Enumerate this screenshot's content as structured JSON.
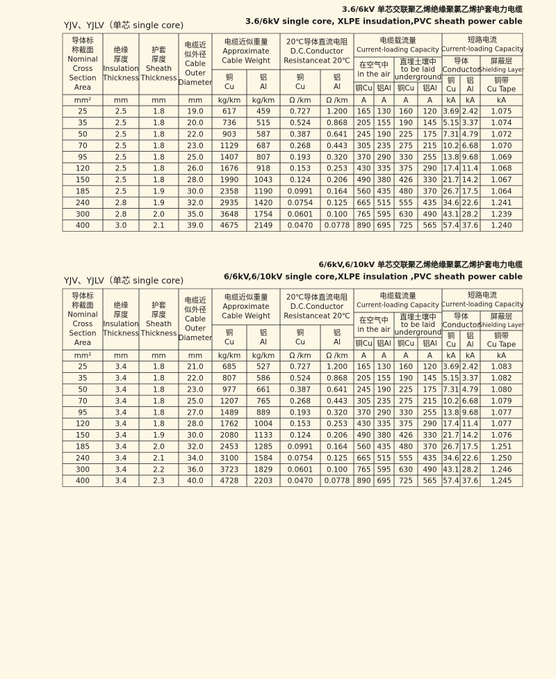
{
  "sections": [
    {
      "title_cn": "3.6/6kV 单芯交联聚乙烯绝缘聚氯乙烯护套电力电缆",
      "title_en": "3.6/6kV single core, XLPE insudation,PVC sheath power cable",
      "label": "YJV、YJLV（单芯  single core)",
      "header": {
        "nominal_area": [
          "导体标",
          "称截面",
          "Nominal",
          "Cross",
          "Section",
          "Area"
        ],
        "insulation": [
          "绝缘",
          "厚度",
          "Insulation",
          "Thickness"
        ],
        "sheath": [
          "护套",
          "厚度",
          "Sheath",
          "Thickness"
        ],
        "diameter": [
          "电缆近",
          "似外径",
          "Cable",
          "Outer",
          "Diameter"
        ],
        "weight": [
          "电缆近似重量",
          "Approximate",
          "Cable Weight"
        ],
        "weight_cu": [
          "铜",
          "Cu"
        ],
        "weight_al": [
          "铝",
          "Al"
        ],
        "resistance": [
          "20℃导体直流电阻",
          "D.C.Conductor",
          "Resistanceat 20℃"
        ],
        "res_cu": [
          "铜",
          "Cu"
        ],
        "res_al": [
          "铝",
          "Al"
        ],
        "current": [
          "电缆载流量",
          "Current-loading Capacity"
        ],
        "air": [
          "在空气中",
          "in the air"
        ],
        "ground": [
          "直埋土壤中",
          "to be laid",
          "underground"
        ],
        "air_cu": [
          "铜Cu"
        ],
        "air_al": [
          "铝Al"
        ],
        "ground_cu": [
          "铜Cu"
        ],
        "ground_al": [
          "铝Al"
        ],
        "short": [
          "短路电流",
          "Current-loading Capacity"
        ],
        "conductor": [
          "导体",
          "Conductor"
        ],
        "shield": [
          "屏蔽层",
          "Shielding Layer"
        ],
        "cond_cu": [
          "铜",
          "Cu"
        ],
        "cond_al": [
          "铝",
          "Al"
        ],
        "tape": [
          "铜带",
          "Cu Tape"
        ]
      },
      "units": [
        "mm²",
        "mm",
        "mm",
        "mm",
        "kg/km",
        "kg/km",
        "Ω /km",
        "Ω /km",
        "A",
        "A",
        "A",
        "A",
        "kA",
        "kA",
        "kA"
      ],
      "rows": [
        [
          "25",
          "2.5",
          "1.8",
          "19.0",
          "617",
          "459",
          "0.727",
          "1.200",
          "165",
          "130",
          "160",
          "120",
          "3.69",
          "2.42",
          "1.075"
        ],
        [
          "35",
          "2.5",
          "1.8",
          "20.0",
          "736",
          "515",
          "0.524",
          "0.868",
          "205",
          "155",
          "190",
          "145",
          "5.15",
          "3.37",
          "1.074"
        ],
        [
          "50",
          "2.5",
          "1.8",
          "22.0",
          "903",
          "587",
          "0.387",
          "0.641",
          "245",
          "190",
          "225",
          "175",
          "7.31",
          "4.79",
          "1.072"
        ],
        [
          "70",
          "2.5",
          "1.8",
          "23.0",
          "1129",
          "687",
          "0.268",
          "0.443",
          "305",
          "235",
          "275",
          "215",
          "10.2",
          "6.68",
          "1.070"
        ],
        [
          "95",
          "2.5",
          "1.8",
          "25.0",
          "1407",
          "807",
          "0.193",
          "0.320",
          "370",
          "290",
          "330",
          "255",
          "13.8",
          "9.68",
          "1.069"
        ],
        [
          "120",
          "2.5",
          "1.8",
          "26.0",
          "1676",
          "918",
          "0.153",
          "0.253",
          "430",
          "335",
          "375",
          "290",
          "17.4",
          "11.4",
          "1.068"
        ],
        [
          "150",
          "2.5",
          "1.8",
          "28.0",
          "1990",
          "1043",
          "0.124",
          "0.206",
          "490",
          "380",
          "426",
          "330",
          "21.7",
          "14.2",
          "1.067"
        ],
        [
          "185",
          "2.5",
          "1.9",
          "30.0",
          "2358",
          "1190",
          "0.0991",
          "0.164",
          "560",
          "435",
          "480",
          "370",
          "26.7",
          "17.5",
          "1.064"
        ],
        [
          "240",
          "2.8",
          "1.9",
          "32.0",
          "2935",
          "1420",
          "0.0754",
          "0.125",
          "665",
          "515",
          "555",
          "435",
          "34.6",
          "22.6",
          "1.241"
        ],
        [
          "300",
          "2.8",
          "2.0",
          "35.0",
          "3648",
          "1754",
          "0.0601",
          "0.100",
          "765",
          "595",
          "630",
          "490",
          "43.1",
          "28.2",
          "1.239"
        ],
        [
          "400",
          "3.0",
          "2.1",
          "39.0",
          "4675",
          "2149",
          "0.0470",
          "0.0778",
          "890",
          "695",
          "725",
          "565",
          "57.4",
          "37.6",
          "1.240"
        ]
      ]
    },
    {
      "title_cn": "6/6kV,6/10kV 单芯交联聚乙烯绝缘聚氯乙烯护套电力电缆",
      "title_en": "6/6kV,6/10kV single  core,XLPE insulation ,PVC sheath power cable",
      "label": "YJV、YJLV（单芯  single core)",
      "header": {
        "nominal_area": [
          "导体标",
          "称截面",
          "Nominal",
          "Cross",
          "Section",
          "Area"
        ],
        "insulation": [
          "绝缘",
          "厚度",
          "Insulation",
          "Thickness"
        ],
        "sheath": [
          "护套",
          "厚度",
          "Sheath",
          "Thickness"
        ],
        "diameter": [
          "电缆近",
          "似外径",
          "Cable",
          "Outer",
          "Diameter"
        ],
        "weight": [
          "电缆近似重量",
          "Approximate",
          "Cable Weight"
        ],
        "weight_cu": [
          "铜",
          "Cu"
        ],
        "weight_al": [
          "铝",
          "Al"
        ],
        "resistance": [
          "20℃导体直流电阻",
          "D.C.Conductor",
          "Resistanceat 20℃"
        ],
        "res_cu": [
          "铜",
          "Cu"
        ],
        "res_al": [
          "铝",
          "Al"
        ],
        "current": [
          "电缆载流量",
          "Current-loading Capacity"
        ],
        "air": [
          "在空气中",
          "in the air"
        ],
        "ground": [
          "直埋土壤中",
          "to be laid",
          "underground"
        ],
        "air_cu": [
          "铜Cu"
        ],
        "air_al": [
          "铝Al"
        ],
        "ground_cu": [
          "铜Cu"
        ],
        "ground_al": [
          "铝Al"
        ],
        "short": [
          "短路电流",
          "Current-loading Capacity"
        ],
        "conductor": [
          "导体",
          "Conductor"
        ],
        "shield": [
          "屏蔽层",
          "Shielding Layer"
        ],
        "cond_cu": [
          "铜",
          "Cu"
        ],
        "cond_al": [
          "铝",
          "Al"
        ],
        "tape": [
          "铜带",
          "Cu Tape"
        ]
      },
      "units": [
        "mm²",
        "mm",
        "mm",
        "mm",
        "kg/km",
        "kg/km",
        "Ω /km",
        "Ω /km",
        "A",
        "A",
        "A",
        "A",
        "kA",
        "kA",
        "kA"
      ],
      "rows": [
        [
          "25",
          "3.4",
          "1.8",
          "21.0",
          "685",
          "527",
          "0.727",
          "1.200",
          "165",
          "130",
          "160",
          "120",
          "3.69",
          "2.42",
          "1.083"
        ],
        [
          "35",
          "3.4",
          "1.8",
          "22.0",
          "807",
          "586",
          "0.524",
          "0.868",
          "205",
          "155",
          "190",
          "145",
          "5.15",
          "3.37",
          "1.082"
        ],
        [
          "50",
          "3.4",
          "1.8",
          "23.0",
          "977",
          "661",
          "0.387",
          "0.641",
          "245",
          "190",
          "225",
          "175",
          "7.31",
          "4.79",
          "1.080"
        ],
        [
          "70",
          "3.4",
          "1.8",
          "25.0",
          "1207",
          "765",
          "0.268",
          "0.443",
          "305",
          "235",
          "275",
          "215",
          "10.2",
          "6.68",
          "1.079"
        ],
        [
          "95",
          "3.4",
          "1.8",
          "27.0",
          "1489",
          "889",
          "0.193",
          "0.320",
          "370",
          "290",
          "330",
          "255",
          "13.8",
          "9.68",
          "1.077"
        ],
        [
          "120",
          "3.4",
          "1.8",
          "28.0",
          "1762",
          "1004",
          "0.153",
          "0.253",
          "430",
          "335",
          "375",
          "290",
          "17.4",
          "11.4",
          "1.077"
        ],
        [
          "150",
          "3.4",
          "1.9",
          "30.0",
          "2080",
          "1133",
          "0.124",
          "0.206",
          "490",
          "380",
          "426",
          "330",
          "21.7",
          "14.2",
          "1.076"
        ],
        [
          "185",
          "3.4",
          "2.0",
          "32.0",
          "2453",
          "1285",
          "0.0991",
          "0.164",
          "560",
          "435",
          "480",
          "370",
          "26.7",
          "17.5",
          "1.251"
        ],
        [
          "240",
          "3.4",
          "2.1",
          "34.0",
          "3100",
          "1584",
          "0.0754",
          "0.125",
          "665",
          "515",
          "555",
          "435",
          "34.6",
          "22.6",
          "1.250"
        ],
        [
          "300",
          "3.4",
          "2.2",
          "36.0",
          "3723",
          "1829",
          "0.0601",
          "0.100",
          "765",
          "595",
          "630",
          "490",
          "43.1",
          "28.2",
          "1.246"
        ],
        [
          "400",
          "3.4",
          "2.3",
          "40.0",
          "4728",
          "2203",
          "0.0470",
          "0.0778",
          "890",
          "695",
          "725",
          "565",
          "57.4",
          "37.6",
          "1.245"
        ]
      ]
    }
  ]
}
